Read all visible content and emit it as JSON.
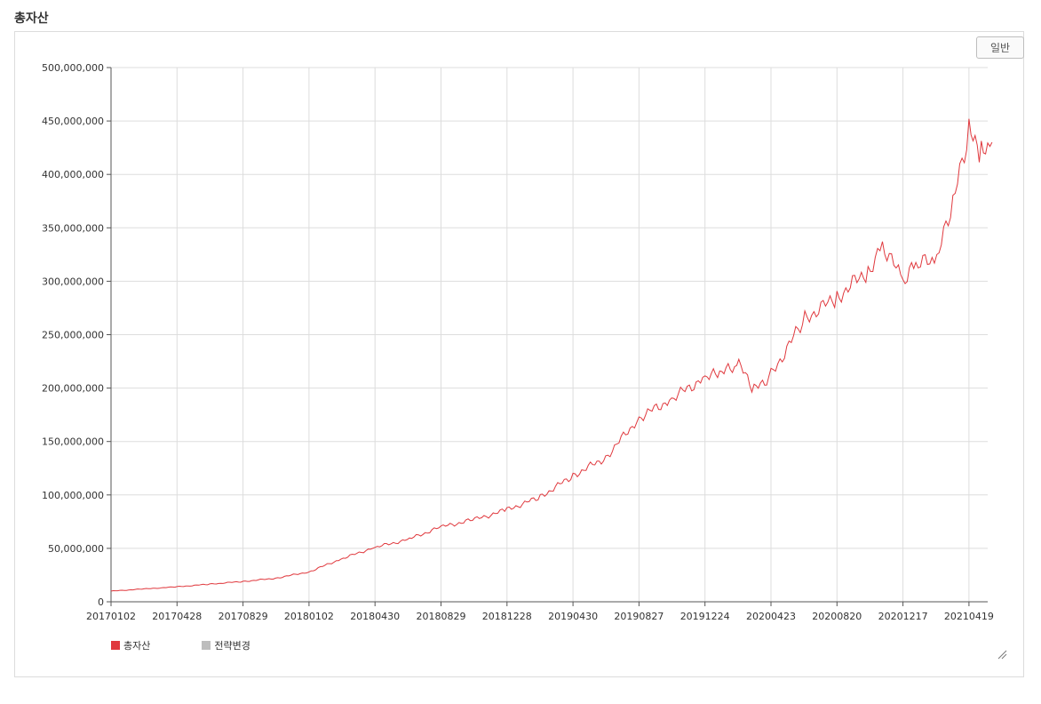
{
  "page": {
    "title": "총자산"
  },
  "toolbar": {
    "mode_label": "일반"
  },
  "legend": [
    {
      "label": "총자산",
      "color": "#e0393e"
    },
    {
      "label": "전략변경",
      "color": "#bdbdbd"
    }
  ],
  "chart_data": {
    "type": "line",
    "title": "",
    "xlabel": "",
    "ylabel": "",
    "ylim": [
      0,
      500000000
    ],
    "y_ticks": [
      "0",
      "50,000,000",
      "100,000,000",
      "150,000,000",
      "200,000,000",
      "250,000,000",
      "300,000,000",
      "350,000,000",
      "400,000,000",
      "450,000,000",
      "500,000,000"
    ],
    "x_ticks": [
      "20170102",
      "20170428",
      "20170829",
      "20180102",
      "20180430",
      "20180829",
      "20181228",
      "20190430",
      "20190827",
      "20191224",
      "20200423",
      "20200820",
      "20201217",
      "20210419"
    ],
    "grid": true,
    "legend_position": "bottom-left",
    "series": [
      {
        "name": "총자산",
        "color": "#e0393e",
        "x": [
          "20170102",
          "20170301",
          "20170428",
          "20170628",
          "20170829",
          "20171030",
          "20180102",
          "20180228",
          "20180430",
          "20180628",
          "20180829",
          "20181030",
          "20181228",
          "20190228",
          "20190430",
          "20190628",
          "20190827",
          "20191025",
          "20191224",
          "20200120",
          "20200224",
          "20200323",
          "20200423",
          "20200623",
          "20200820",
          "20201015",
          "20201110",
          "20201217",
          "20210110",
          "20210218",
          "20210320",
          "20210419",
          "20210512",
          "20210601"
        ],
        "values": [
          10000000,
          12000000,
          14000000,
          16500000,
          19000000,
          22000000,
          28000000,
          40000000,
          51000000,
          58000000,
          70000000,
          77000000,
          86000000,
          98000000,
          118000000,
          135000000,
          172000000,
          190000000,
          210000000,
          213000000,
          222000000,
          198000000,
          212000000,
          265000000,
          285000000,
          310000000,
          335000000,
          300000000,
          315000000,
          320000000,
          372000000,
          440000000,
          420000000,
          430000000
        ]
      }
    ]
  }
}
